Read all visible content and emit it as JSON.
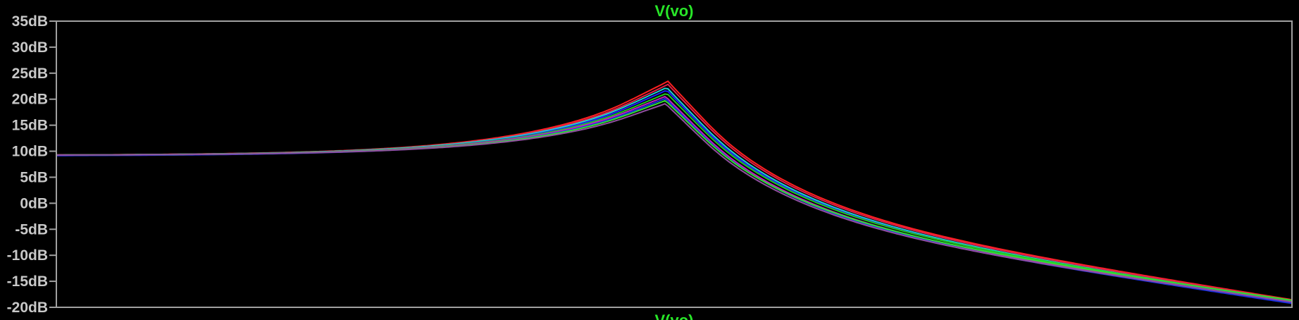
{
  "chart_data": {
    "type": "line",
    "title": "V(vo)",
    "bottom_title": "V(vo)",
    "y_unit": "dB",
    "ylim": [
      -20,
      35
    ],
    "y_ticks": [
      {
        "value": 35,
        "label": "35dB"
      },
      {
        "value": 30,
        "label": "30dB"
      },
      {
        "value": 25,
        "label": "25dB"
      },
      {
        "value": 20,
        "label": "20dB"
      },
      {
        "value": 15,
        "label": "15dB"
      },
      {
        "value": 10,
        "label": "10dB"
      },
      {
        "value": 5,
        "label": "5dB"
      },
      {
        "value": 0,
        "label": "0dB"
      },
      {
        "value": -5,
        "label": "-5dB"
      },
      {
        "value": -10,
        "label": "-10dB"
      },
      {
        "value": -15,
        "label": "-15dB"
      },
      {
        "value": -20,
        "label": "-20dB"
      }
    ],
    "x_scale": "log",
    "xlim": [
      0,
      1
    ],
    "grid": false,
    "legend": "none",
    "colors": {
      "background": "#000000",
      "frame": "#a0a0a0",
      "tick_text": "#c8c8c8",
      "title_text": "#28e628"
    },
    "series": [
      {
        "color": "#ff2020",
        "peak_x": 0.495,
        "peak_db": 23.5,
        "base_db": 9.2,
        "end_db": -18.6
      },
      {
        "color": "#e0204a",
        "peak_x": 0.495,
        "peak_db": 22.9,
        "base_db": 9.2,
        "end_db": -18.7
      },
      {
        "color": "#20d0d0",
        "peak_x": 0.494,
        "peak_db": 22.3,
        "base_db": 9.2,
        "end_db": -18.9
      },
      {
        "color": "#2020ff",
        "peak_x": 0.494,
        "peak_db": 21.8,
        "base_db": 9.1,
        "end_db": -19.0
      },
      {
        "color": "#20c820",
        "peak_x": 0.494,
        "peak_db": 21.2,
        "base_db": 9.2,
        "end_db": -18.8
      },
      {
        "color": "#c020c0",
        "peak_x": 0.493,
        "peak_db": 20.6,
        "base_db": 9.2,
        "end_db": -19.1
      },
      {
        "color": "#1a30e0",
        "peak_x": 0.493,
        "peak_db": 20.2,
        "base_db": 9.1,
        "end_db": -19.3
      },
      {
        "color": "#30e030",
        "peak_x": 0.493,
        "peak_db": 19.8,
        "base_db": 9.2,
        "end_db": -18.7
      },
      {
        "color": "#9050a0",
        "peak_x": 0.493,
        "peak_db": 19.2,
        "base_db": 9.2,
        "end_db": -19.0
      }
    ]
  }
}
